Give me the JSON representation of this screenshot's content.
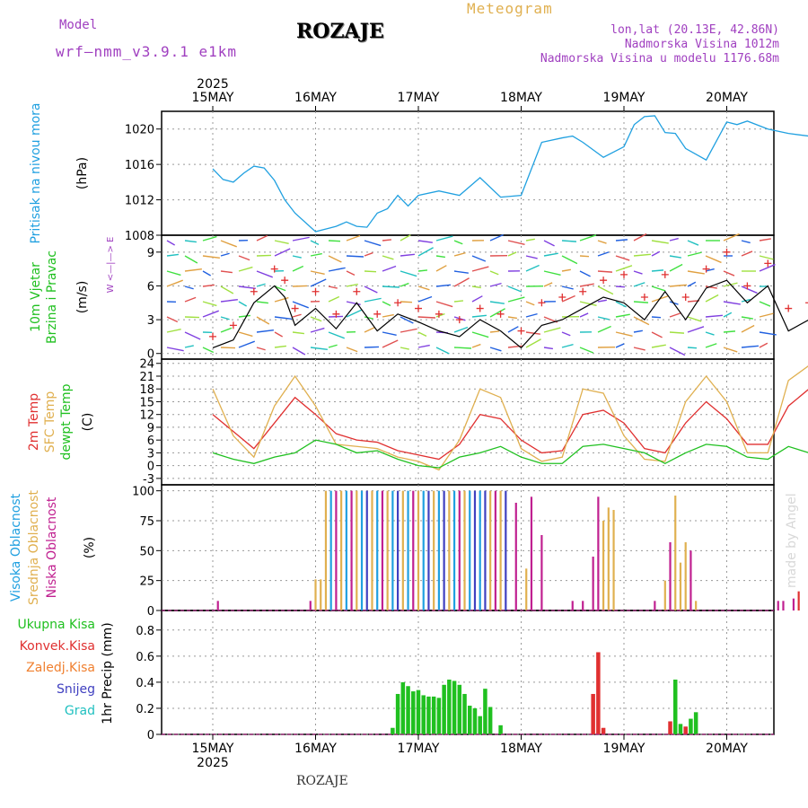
{
  "header": {
    "model_label": "Model",
    "model_name": "wrf–nmm_v3.9.1  e1km",
    "title": "ROZAJE",
    "meteogram_label": "Meteogram",
    "location": "lon,lat (20.13E, 42.86N)",
    "elevation": "Nadmorska Visina 1012m",
    "model_elevation": "Nadmorska Visina u modelu 1176.68m"
  },
  "footer_label": "ROZAJE",
  "watermark": "made by Angel",
  "time_axis": {
    "year": "2025",
    "ticks": [
      "15MAY",
      "16MAY",
      "17MAY",
      "18MAY",
      "19MAY",
      "20MAY"
    ]
  },
  "chart_data": [
    {
      "type": "line",
      "id": "pressure",
      "ylabel_lines": [
        "Pritisak na nivou mora"
      ],
      "unit": "(hPa)",
      "ylim": [
        1008,
        1022
      ],
      "yticks": [
        "1008",
        "1012",
        "1016",
        "1020"
      ],
      "x_days": [
        0.0,
        0.1,
        0.2,
        0.3,
        0.4,
        0.5,
        0.6,
        0.7,
        0.8,
        1.0,
        1.2,
        1.3,
        1.4,
        1.5,
        1.6,
        1.7,
        1.8,
        1.9,
        2.0,
        2.2,
        2.4,
        2.6,
        2.8,
        3.0,
        3.2,
        3.4,
        3.5,
        3.6,
        3.8,
        4.0,
        4.1,
        4.2,
        4.3,
        4.4,
        4.5,
        4.6,
        4.8,
        5.0,
        5.1,
        5.2,
        5.4,
        5.6,
        5.8,
        6.0
      ],
      "series": [
        {
          "color": "#20a0e0",
          "values": [
            1015.5,
            1014.3,
            1014.0,
            1015.0,
            1015.8,
            1015.6,
            1014.2,
            1012.0,
            1010.5,
            1008.4,
            1009.0,
            1009.5,
            1009.0,
            1008.9,
            1010.5,
            1011.0,
            1012.5,
            1011.3,
            1012.5,
            1013.0,
            1012.5,
            1014.5,
            1012.3,
            1012.5,
            1018.5,
            1019.0,
            1019.2,
            1018.5,
            1016.8,
            1018.0,
            1020.5,
            1021.4,
            1021.5,
            1019.6,
            1019.5,
            1017.8,
            1016.5,
            1020.8,
            1020.5,
            1020.9,
            1020.0,
            1019.5,
            1019.2,
            1018.0
          ]
        }
      ]
    },
    {
      "type": "line",
      "id": "wind",
      "ylabel_lines": [
        "10m Vjetar",
        "Brzina i Pravac"
      ],
      "unit": "(m/s)",
      "ylim": [
        -0.5,
        10.5
      ],
      "yticks": [
        "0",
        "3",
        "6",
        "9"
      ],
      "direction_key": "W <—|—> E",
      "x_days": [
        0.0,
        0.2,
        0.4,
        0.6,
        0.7,
        0.8,
        1.0,
        1.2,
        1.4,
        1.6,
        1.8,
        2.0,
        2.2,
        2.4,
        2.6,
        2.8,
        3.0,
        3.2,
        3.4,
        3.6,
        3.8,
        4.0,
        4.2,
        4.4,
        4.6,
        4.8,
        5.0,
        5.2,
        5.4,
        5.6,
        5.8,
        6.0
      ],
      "series": [
        {
          "name": "mean",
          "color": "#000000",
          "values": [
            0.5,
            1.2,
            4.5,
            6.0,
            5.0,
            2.5,
            4.0,
            2.2,
            4.5,
            2.0,
            3.5,
            2.8,
            2.0,
            1.5,
            3.0,
            2.0,
            0.5,
            2.5,
            3.0,
            4.0,
            5.0,
            4.5,
            3.0,
            5.5,
            3.0,
            5.8,
            6.5,
            4.5,
            6.0,
            2.0,
            3.0,
            4.0
          ]
        },
        {
          "name": "gust",
          "color": "#e03030",
          "values": [
            1.5,
            2.5,
            5.5,
            7.5,
            6.5,
            4.0,
            5.5,
            3.5,
            5.5,
            3.5,
            4.5,
            4.0,
            3.5,
            3.0,
            4.0,
            3.5,
            2.0,
            4.5,
            5.0,
            5.5,
            6.5,
            7.0,
            5.0,
            7.0,
            5.0,
            7.5,
            9.0,
            6.0,
            8.0,
            4.0,
            4.5,
            5.0
          ]
        }
      ]
    },
    {
      "type": "line",
      "id": "temperature",
      "ylabel_lines": [
        "2m Temp",
        "SFC Temp",
        "dewpt Temp"
      ],
      "unit": "(C)",
      "ylim": [
        -4.5,
        25
      ],
      "yticks": [
        "-3",
        "0",
        "3",
        "6",
        "9",
        "12",
        "15",
        "18",
        "21",
        "24"
      ],
      "x_days": [
        0.0,
        0.2,
        0.4,
        0.6,
        0.8,
        1.0,
        1.2,
        1.4,
        1.6,
        1.8,
        2.0,
        2.2,
        2.4,
        2.6,
        2.8,
        3.0,
        3.2,
        3.4,
        3.6,
        3.8,
        4.0,
        4.2,
        4.4,
        4.6,
        4.8,
        5.0,
        5.2,
        5.4,
        5.6,
        5.8,
        6.0
      ],
      "series": [
        {
          "name": "2m Temp",
          "color": "#e03030",
          "values": [
            12.0,
            8.0,
            4.0,
            10.0,
            16.0,
            12.0,
            7.5,
            6.0,
            5.5,
            3.5,
            2.5,
            1.5,
            5.0,
            12.0,
            11.0,
            6.0,
            3.0,
            3.5,
            12.0,
            13.0,
            10.0,
            4.0,
            3.0,
            10.0,
            15.0,
            11.0,
            5.0,
            5.0,
            14.0,
            18.0,
            19.0
          ]
        },
        {
          "name": "SFC Temp",
          "color": "#e0b050",
          "values": [
            18.0,
            7.0,
            2.0,
            14.0,
            21.0,
            14.0,
            5.0,
            4.5,
            4.0,
            2.0,
            1.0,
            -1.0,
            6.0,
            18.0,
            16.0,
            4.0,
            1.0,
            2.0,
            18.0,
            17.0,
            7.0,
            1.5,
            1.0,
            15.0,
            21.0,
            15.0,
            3.0,
            3.0,
            20.0,
            23.5,
            23.0
          ]
        },
        {
          "name": "dewpt Temp",
          "color": "#20c020",
          "values": [
            3.0,
            1.5,
            0.5,
            2.0,
            3.0,
            6.0,
            5.0,
            3.0,
            3.5,
            1.5,
            0.0,
            -0.5,
            2.0,
            3.0,
            4.5,
            2.0,
            0.5,
            0.5,
            4.5,
            5.0,
            4.0,
            3.0,
            0.5,
            3.0,
            5.0,
            4.5,
            2.0,
            1.5,
            4.5,
            3.0,
            5.5
          ]
        }
      ]
    },
    {
      "type": "bar",
      "id": "clouds",
      "ylabel_lines": [
        "Visoka Oblacnost",
        "Srednja Oblacnost",
        "Niska Oblacnost"
      ],
      "unit": "(%)",
      "ylim": [
        0,
        105
      ],
      "yticks": [
        "0",
        "25",
        "50",
        "75",
        "100"
      ],
      "bars": [
        {
          "day": 0.05,
          "value": 8,
          "color": "#c02090"
        },
        {
          "day": 0.95,
          "value": 8,
          "color": "#c02090"
        },
        {
          "day": 1.0,
          "value": 26,
          "color": "#e0b050"
        },
        {
          "day": 1.05,
          "value": 26,
          "color": "#e0b050"
        },
        {
          "day": 1.1,
          "value": 100,
          "color": "#e0b050"
        },
        {
          "day": 1.15,
          "value": 100,
          "color": "#20a0e0"
        },
        {
          "day": 1.2,
          "value": 100,
          "color": "#c02090"
        },
        {
          "day": 1.25,
          "value": 100,
          "color": "#e0b050"
        },
        {
          "day": 1.3,
          "value": 100,
          "color": "#20a0e0"
        },
        {
          "day": 1.35,
          "value": 100,
          "color": "#c02090"
        },
        {
          "day": 1.4,
          "value": 100,
          "color": "#e0b050"
        },
        {
          "day": 1.45,
          "value": 100,
          "color": "#20a0e0"
        },
        {
          "day": 1.5,
          "value": 100,
          "color": "#4040c0"
        },
        {
          "day": 1.55,
          "value": 100,
          "color": "#e0b050"
        },
        {
          "day": 1.6,
          "value": 100,
          "color": "#20a0e0"
        },
        {
          "day": 1.65,
          "value": 100,
          "color": "#c02090"
        },
        {
          "day": 1.7,
          "value": 100,
          "color": "#e0b050"
        },
        {
          "day": 1.75,
          "value": 100,
          "color": "#20a0e0"
        },
        {
          "day": 1.8,
          "value": 100,
          "color": "#4040c0"
        },
        {
          "day": 1.85,
          "value": 100,
          "color": "#e0b050"
        },
        {
          "day": 1.9,
          "value": 100,
          "color": "#20a0e0"
        },
        {
          "day": 1.95,
          "value": 100,
          "color": "#c02090"
        },
        {
          "day": 2.0,
          "value": 100,
          "color": "#e0b050"
        },
        {
          "day": 2.05,
          "value": 100,
          "color": "#20a0e0"
        },
        {
          "day": 2.1,
          "value": 100,
          "color": "#4040c0"
        },
        {
          "day": 2.15,
          "value": 100,
          "color": "#e0b050"
        },
        {
          "day": 2.2,
          "value": 100,
          "color": "#20a0e0"
        },
        {
          "day": 2.25,
          "value": 100,
          "color": "#4040c0"
        },
        {
          "day": 2.3,
          "value": 100,
          "color": "#e0b050"
        },
        {
          "day": 2.35,
          "value": 100,
          "color": "#20a0e0"
        },
        {
          "day": 2.4,
          "value": 100,
          "color": "#c02090"
        },
        {
          "day": 2.45,
          "value": 100,
          "color": "#e0b050"
        },
        {
          "day": 2.5,
          "value": 100,
          "color": "#20a0e0"
        },
        {
          "day": 2.55,
          "value": 100,
          "color": "#4040c0"
        },
        {
          "day": 2.6,
          "value": 100,
          "color": "#20a0e0"
        },
        {
          "day": 2.65,
          "value": 100,
          "color": "#4040c0"
        },
        {
          "day": 2.7,
          "value": 100,
          "color": "#e0b050"
        },
        {
          "day": 2.75,
          "value": 100,
          "color": "#c02090"
        },
        {
          "day": 2.8,
          "value": 100,
          "color": "#e0b050"
        },
        {
          "day": 2.85,
          "value": 100,
          "color": "#4040c0"
        },
        {
          "day": 2.95,
          "value": 90,
          "color": "#c02090"
        },
        {
          "day": 3.05,
          "value": 35,
          "color": "#e0b050"
        },
        {
          "day": 3.1,
          "value": 95,
          "color": "#c02090"
        },
        {
          "day": 3.2,
          "value": 63,
          "color": "#c02090"
        },
        {
          "day": 3.5,
          "value": 8,
          "color": "#c02090"
        },
        {
          "day": 3.6,
          "value": 8,
          "color": "#c02090"
        },
        {
          "day": 3.7,
          "value": 45,
          "color": "#c02090"
        },
        {
          "day": 3.75,
          "value": 95,
          "color": "#c02090"
        },
        {
          "day": 3.8,
          "value": 75,
          "color": "#e0b050"
        },
        {
          "day": 3.85,
          "value": 86,
          "color": "#e0b050"
        },
        {
          "day": 3.9,
          "value": 84,
          "color": "#e0b050"
        },
        {
          "day": 4.3,
          "value": 8,
          "color": "#c02090"
        },
        {
          "day": 4.4,
          "value": 25,
          "color": "#e0b050"
        },
        {
          "day": 4.45,
          "value": 57,
          "color": "#c02090"
        },
        {
          "day": 4.5,
          "value": 96,
          "color": "#e0b050"
        },
        {
          "day": 4.55,
          "value": 40,
          "color": "#e0b050"
        },
        {
          "day": 4.6,
          "value": 57,
          "color": "#e0b050"
        },
        {
          "day": 4.65,
          "value": 50,
          "color": "#c02090"
        },
        {
          "day": 4.7,
          "value": 8,
          "color": "#e0b050"
        },
        {
          "day": 5.5,
          "value": 8,
          "color": "#c02090"
        },
        {
          "day": 5.55,
          "value": 8,
          "color": "#c02090"
        },
        {
          "day": 5.65,
          "value": 10,
          "color": "#c02090"
        },
        {
          "day": 5.7,
          "value": 16,
          "color": "#e03030"
        }
      ]
    },
    {
      "type": "bar",
      "id": "precip",
      "ylabel_lines": [
        "1hr Precip (mm)"
      ],
      "legend": [
        {
          "name": "Ukupna  Kisa",
          "color": "#20c020"
        },
        {
          "name": "Konvek.Kisa",
          "color": "#e03030"
        },
        {
          "name": "Zaledj.Kisa",
          "color": "#f08030"
        },
        {
          "name": "Snijeg",
          "color": "#4040c0"
        },
        {
          "name": "Grad",
          "color": "#20c0c0"
        }
      ],
      "ylim": [
        0,
        0.95
      ],
      "yticks": [
        "0",
        "0.2",
        "0.4",
        "0.6",
        "0.8"
      ],
      "bars": [
        {
          "day": 1.75,
          "value": 0.05,
          "color": "#20c020"
        },
        {
          "day": 1.8,
          "value": 0.31,
          "color": "#20c020"
        },
        {
          "day": 1.85,
          "value": 0.4,
          "color": "#20c020"
        },
        {
          "day": 1.9,
          "value": 0.37,
          "color": "#20c020"
        },
        {
          "day": 1.95,
          "value": 0.33,
          "color": "#20c020"
        },
        {
          "day": 2.0,
          "value": 0.34,
          "color": "#20c020"
        },
        {
          "day": 2.05,
          "value": 0.3,
          "color": "#20c020"
        },
        {
          "day": 2.1,
          "value": 0.29,
          "color": "#20c020"
        },
        {
          "day": 2.15,
          "value": 0.29,
          "color": "#20c020"
        },
        {
          "day": 2.2,
          "value": 0.28,
          "color": "#20c020"
        },
        {
          "day": 2.25,
          "value": 0.38,
          "color": "#20c020"
        },
        {
          "day": 2.3,
          "value": 0.42,
          "color": "#20c020"
        },
        {
          "day": 2.35,
          "value": 0.41,
          "color": "#20c020"
        },
        {
          "day": 2.4,
          "value": 0.38,
          "color": "#20c020"
        },
        {
          "day": 2.45,
          "value": 0.31,
          "color": "#20c020"
        },
        {
          "day": 2.5,
          "value": 0.22,
          "color": "#20c020"
        },
        {
          "day": 2.55,
          "value": 0.2,
          "color": "#20c020"
        },
        {
          "day": 2.6,
          "value": 0.14,
          "color": "#20c020"
        },
        {
          "day": 2.65,
          "value": 0.35,
          "color": "#20c020"
        },
        {
          "day": 2.7,
          "value": 0.21,
          "color": "#20c020"
        },
        {
          "day": 2.8,
          "value": 0.07,
          "color": "#20c020"
        },
        {
          "day": 3.7,
          "value": 0.31,
          "color": "#e03030"
        },
        {
          "day": 3.75,
          "value": 0.63,
          "color": "#e03030"
        },
        {
          "day": 3.8,
          "value": 0.05,
          "color": "#e03030"
        },
        {
          "day": 4.45,
          "value": 0.1,
          "color": "#e03030"
        },
        {
          "day": 4.5,
          "value": 0.42,
          "color": "#20c020"
        },
        {
          "day": 4.55,
          "value": 0.08,
          "color": "#20c020"
        },
        {
          "day": 4.6,
          "value": 0.06,
          "color": "#e03030"
        },
        {
          "day": 4.65,
          "value": 0.12,
          "color": "#20c020"
        },
        {
          "day": 4.7,
          "value": 0.17,
          "color": "#20c020"
        }
      ]
    }
  ]
}
